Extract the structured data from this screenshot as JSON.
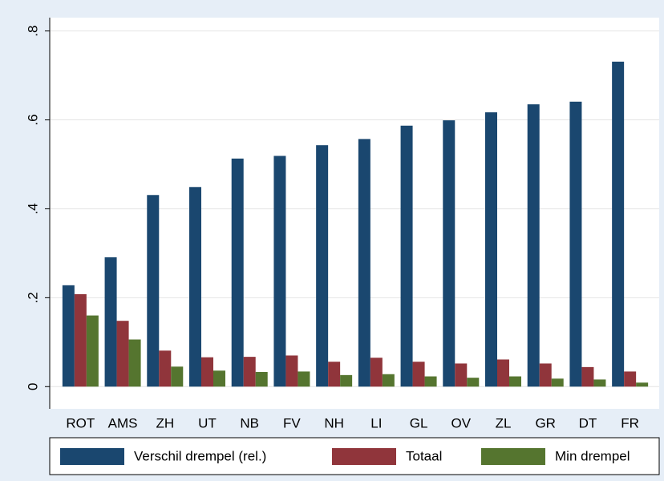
{
  "chart_data": {
    "type": "bar",
    "categories": [
      "ROT",
      "AMS",
      "ZH",
      "UT",
      "NB",
      "FV",
      "NH",
      "LI",
      "GL",
      "OV",
      "ZL",
      "GR",
      "DT",
      "FR"
    ],
    "series": [
      {
        "name": "Verschil drempel (rel.)",
        "color": "#1a476f",
        "values": [
          0.228,
          0.291,
          0.431,
          0.449,
          0.513,
          0.519,
          0.543,
          0.557,
          0.587,
          0.599,
          0.617,
          0.635,
          0.641,
          0.731
        ]
      },
      {
        "name": "Totaal",
        "color": "#90353b",
        "values": [
          0.208,
          0.148,
          0.081,
          0.066,
          0.067,
          0.07,
          0.056,
          0.065,
          0.056,
          0.052,
          0.061,
          0.052,
          0.044,
          0.034
        ]
      },
      {
        "name": "Min drempel",
        "color": "#55752f",
        "values": [
          0.16,
          0.106,
          0.045,
          0.036,
          0.033,
          0.034,
          0.026,
          0.028,
          0.023,
          0.02,
          0.023,
          0.018,
          0.016,
          0.009
        ]
      }
    ],
    "ylim": [
      -0.05,
      0.83
    ],
    "yticks": [
      0,
      {
        "value": 0.2,
        "label": ".2"
      },
      {
        "value": 0.4,
        "label": ".4"
      },
      {
        "value": 0.6,
        "label": ".6"
      },
      {
        "value": 0.8,
        "label": ".8"
      }
    ],
    "grid": true,
    "legend": "bottom"
  }
}
